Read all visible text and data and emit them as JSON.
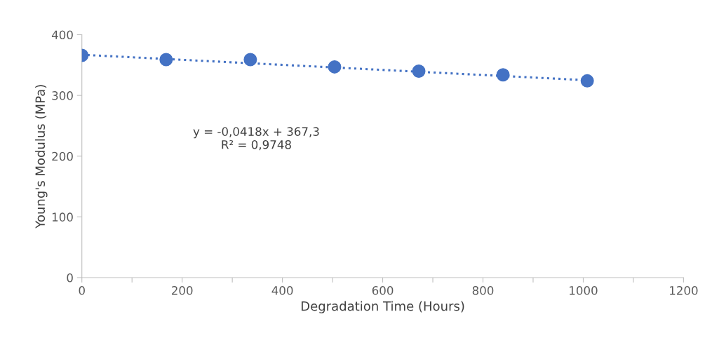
{
  "chart_data": {
    "type": "scatter",
    "xlabel": "Degradation Time (Hours)",
    "ylabel": "Young's Modulus (MPa)",
    "xlim": [
      0,
      1200
    ],
    "ylim": [
      0,
      400
    ],
    "xticks": [
      0,
      {
        "value": 100,
        "label": null
      },
      200,
      {
        "value": 300,
        "label": null
      },
      400,
      {
        "value": 500,
        "label": null
      },
      600,
      {
        "value": 700,
        "label": null
      },
      800,
      {
        "value": 900,
        "label": null
      },
      1000,
      {
        "value": 1100,
        "label": null
      },
      1200
    ],
    "yticks": [
      0,
      100,
      200,
      300,
      400
    ],
    "series": [
      {
        "color": "#4472c4",
        "x": [
          0,
          168,
          336,
          504,
          672,
          840,
          1008
        ],
        "values": [
          366,
          359,
          359,
          347,
          340,
          334,
          324
        ],
        "marker": "circle"
      },
      {
        "type": "line",
        "color": "#4472c4",
        "x": [
          0,
          1008
        ],
        "values": [
          367,
          325
        ],
        "line_style": "dotted",
        "marker": "none"
      }
    ],
    "annotations": [
      "y = -0,0418x + 367,3\nR² = 0,9748"
    ],
    "grid": false,
    "legend": false
  }
}
